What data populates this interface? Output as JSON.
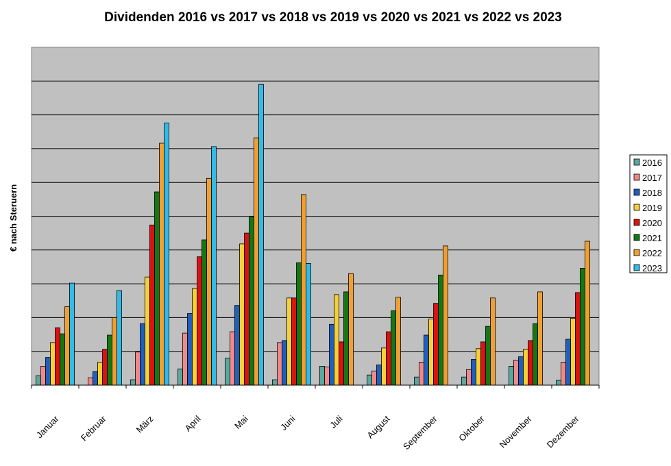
{
  "chart_data": {
    "type": "bar",
    "title": "Dividenden 2016 vs 2017 vs 2018 vs 2019 vs 2020 vs 2021 vs 2022 vs 2023",
    "xlabel": "",
    "ylabel": "€ nach Steruern",
    "ylim": [
      0,
      100
    ],
    "y_tick_labels_shown": false,
    "grid": true,
    "legend_position": "right",
    "background_color": "#c0c0c0",
    "categories": [
      "Januar",
      "Februar",
      "März",
      "April",
      "Mai",
      "Juni",
      "Juli",
      "August",
      "September",
      "Oktober",
      "November",
      "Dezember"
    ],
    "series": [
      {
        "name": "2016",
        "color": "#5aa9a0",
        "values": [
          2.8,
          0,
          1.6,
          4.8,
          8.0,
          1.6,
          5.6,
          3.0,
          2.4,
          2.4,
          5.6,
          1.4
        ]
      },
      {
        "name": "2017",
        "color": "#f08a8a",
        "values": [
          5.6,
          2.2,
          9.8,
          15.4,
          15.8,
          12.6,
          5.4,
          4.2,
          6.8,
          4.6,
          7.4,
          6.8
        ]
      },
      {
        "name": "2018",
        "color": "#1f5fbf",
        "values": [
          8.2,
          4.0,
          18.2,
          21.2,
          23.6,
          13.2,
          18.0,
          6.0,
          14.8,
          7.6,
          8.4,
          13.6
        ]
      },
      {
        "name": "2019",
        "color": "#f5d03a",
        "values": [
          12.6,
          6.8,
          32.0,
          28.6,
          41.8,
          25.8,
          26.8,
          11.0,
          19.6,
          10.8,
          10.6,
          19.8
        ]
      },
      {
        "name": "2020",
        "color": "#dd1111",
        "values": [
          17.0,
          10.6,
          47.4,
          38.0,
          45.0,
          25.8,
          12.8,
          15.8,
          24.2,
          12.8,
          13.2,
          27.4
        ]
      },
      {
        "name": "2021",
        "color": "#137813",
        "values": [
          15.2,
          14.8,
          57.2,
          43.0,
          49.8,
          36.2,
          27.6,
          22.0,
          32.6,
          17.4,
          18.2,
          34.6
        ]
      },
      {
        "name": "2022",
        "color": "#f0a033",
        "values": [
          23.2,
          20.0,
          71.6,
          61.2,
          73.2,
          56.4,
          33.0,
          26.0,
          41.2,
          25.8,
          27.6,
          42.6
        ]
      },
      {
        "name": "2023",
        "color": "#33bbe8",
        "values": [
          30.2,
          28.0,
          77.6,
          70.6,
          89.0,
          36.0,
          0,
          0,
          0,
          0,
          0,
          0
        ]
      }
    ]
  }
}
